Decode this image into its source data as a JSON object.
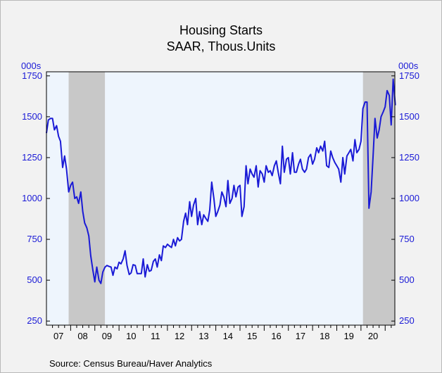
{
  "chart_data": {
    "type": "line",
    "title": "Housing Starts",
    "subtitle": "SAAR, Thous.Units",
    "unit_label_left": "000s",
    "unit_label_right": "000s",
    "source": "Source:  Census Bureau/Haver Analytics",
    "ylim": [
      225,
      1775
    ],
    "yticks": [
      250,
      500,
      750,
      1000,
      1250,
      1500,
      1750
    ],
    "xlim": [
      2007.0,
      2021.4
    ],
    "xtick_labels": [
      "07",
      "08",
      "09",
      "10",
      "11",
      "12",
      "13",
      "14",
      "15",
      "16",
      "17",
      "18",
      "19",
      "20"
    ],
    "recessions": [
      [
        2007.917,
        2009.417
      ],
      [
        2020.083,
        2021.4
      ]
    ],
    "grid": false,
    "colors": {
      "line": "#1a1ad6",
      "plot_bg": "#eef5fd",
      "recession": "#c8c8c8",
      "axis_text": "#1a1ad6"
    },
    "series": [
      {
        "values": [
          [
            2007.0,
            1400
          ],
          [
            2007.08,
            1480
          ],
          [
            2007.17,
            1490
          ],
          [
            2007.25,
            1490
          ],
          [
            2007.33,
            1420
          ],
          [
            2007.42,
            1445
          ],
          [
            2007.5,
            1380
          ],
          [
            2007.58,
            1350
          ],
          [
            2007.67,
            1190
          ],
          [
            2007.75,
            1260
          ],
          [
            2007.83,
            1180
          ],
          [
            2007.92,
            1040
          ],
          [
            2008.0,
            1080
          ],
          [
            2008.08,
            1100
          ],
          [
            2008.17,
            1000
          ],
          [
            2008.25,
            1010
          ],
          [
            2008.33,
            970
          ],
          [
            2008.42,
            1040
          ],
          [
            2008.5,
            920
          ],
          [
            2008.58,
            850
          ],
          [
            2008.67,
            820
          ],
          [
            2008.75,
            770
          ],
          [
            2008.83,
            650
          ],
          [
            2008.92,
            560
          ],
          [
            2009.0,
            490
          ],
          [
            2009.08,
            580
          ],
          [
            2009.17,
            500
          ],
          [
            2009.25,
            480
          ],
          [
            2009.33,
            550
          ],
          [
            2009.42,
            580
          ],
          [
            2009.5,
            590
          ],
          [
            2009.58,
            585
          ],
          [
            2009.67,
            580
          ],
          [
            2009.75,
            530
          ],
          [
            2009.83,
            580
          ],
          [
            2009.92,
            570
          ],
          [
            2010.0,
            610
          ],
          [
            2010.08,
            600
          ],
          [
            2010.17,
            630
          ],
          [
            2010.25,
            680
          ],
          [
            2010.33,
            590
          ],
          [
            2010.42,
            535
          ],
          [
            2010.5,
            545
          ],
          [
            2010.58,
            595
          ],
          [
            2010.67,
            590
          ],
          [
            2010.75,
            540
          ],
          [
            2010.83,
            540
          ],
          [
            2010.92,
            540
          ],
          [
            2011.0,
            630
          ],
          [
            2011.08,
            520
          ],
          [
            2011.17,
            595
          ],
          [
            2011.25,
            555
          ],
          [
            2011.33,
            560
          ],
          [
            2011.42,
            615
          ],
          [
            2011.5,
            630
          ],
          [
            2011.58,
            580
          ],
          [
            2011.67,
            655
          ],
          [
            2011.75,
            620
          ],
          [
            2011.83,
            710
          ],
          [
            2011.92,
            700
          ],
          [
            2012.0,
            720
          ],
          [
            2012.08,
            710
          ],
          [
            2012.17,
            700
          ],
          [
            2012.25,
            750
          ],
          [
            2012.33,
            710
          ],
          [
            2012.42,
            760
          ],
          [
            2012.5,
            740
          ],
          [
            2012.58,
            750
          ],
          [
            2012.67,
            860
          ],
          [
            2012.75,
            910
          ],
          [
            2012.83,
            840
          ],
          [
            2012.92,
            980
          ],
          [
            2013.0,
            890
          ],
          [
            2013.08,
            960
          ],
          [
            2013.17,
            1000
          ],
          [
            2013.25,
            840
          ],
          [
            2013.33,
            920
          ],
          [
            2013.42,
            840
          ],
          [
            2013.5,
            900
          ],
          [
            2013.58,
            880
          ],
          [
            2013.67,
            860
          ],
          [
            2013.75,
            930
          ],
          [
            2013.83,
            1100
          ],
          [
            2013.92,
            1000
          ],
          [
            2014.0,
            890
          ],
          [
            2014.08,
            920
          ],
          [
            2014.17,
            960
          ],
          [
            2014.25,
            1040
          ],
          [
            2014.33,
            1010
          ],
          [
            2014.42,
            950
          ],
          [
            2014.5,
            1110
          ],
          [
            2014.58,
            970
          ],
          [
            2014.67,
            1000
          ],
          [
            2014.75,
            1080
          ],
          [
            2014.83,
            1010
          ],
          [
            2014.92,
            1070
          ],
          [
            2015.0,
            1080
          ],
          [
            2015.08,
            890
          ],
          [
            2015.17,
            950
          ],
          [
            2015.25,
            1200
          ],
          [
            2015.33,
            1090
          ],
          [
            2015.42,
            1180
          ],
          [
            2015.5,
            1150
          ],
          [
            2015.58,
            1130
          ],
          [
            2015.67,
            1200
          ],
          [
            2015.75,
            1070
          ],
          [
            2015.83,
            1170
          ],
          [
            2015.92,
            1150
          ],
          [
            2016.0,
            1100
          ],
          [
            2016.08,
            1200
          ],
          [
            2016.17,
            1160
          ],
          [
            2016.25,
            1170
          ],
          [
            2016.33,
            1140
          ],
          [
            2016.42,
            1200
          ],
          [
            2016.5,
            1230
          ],
          [
            2016.58,
            1160
          ],
          [
            2016.67,
            1090
          ],
          [
            2016.75,
            1320
          ],
          [
            2016.83,
            1160
          ],
          [
            2016.92,
            1240
          ],
          [
            2017.0,
            1250
          ],
          [
            2017.08,
            1150
          ],
          [
            2017.17,
            1280
          ],
          [
            2017.25,
            1160
          ],
          [
            2017.33,
            1160
          ],
          [
            2017.42,
            1210
          ],
          [
            2017.5,
            1240
          ],
          [
            2017.58,
            1180
          ],
          [
            2017.67,
            1160
          ],
          [
            2017.75,
            1180
          ],
          [
            2017.83,
            1250
          ],
          [
            2017.92,
            1270
          ],
          [
            2018.0,
            1210
          ],
          [
            2018.08,
            1240
          ],
          [
            2018.17,
            1310
          ],
          [
            2018.25,
            1280
          ],
          [
            2018.33,
            1320
          ],
          [
            2018.42,
            1290
          ],
          [
            2018.5,
            1350
          ],
          [
            2018.58,
            1200
          ],
          [
            2018.67,
            1190
          ],
          [
            2018.75,
            1290
          ],
          [
            2018.83,
            1250
          ],
          [
            2018.92,
            1220
          ],
          [
            2019.0,
            1200
          ],
          [
            2019.08,
            1180
          ],
          [
            2019.17,
            1100
          ],
          [
            2019.25,
            1250
          ],
          [
            2019.33,
            1150
          ],
          [
            2019.42,
            1260
          ],
          [
            2019.5,
            1280
          ],
          [
            2019.58,
            1300
          ],
          [
            2019.67,
            1230
          ],
          [
            2019.75,
            1360
          ],
          [
            2019.83,
            1280
          ],
          [
            2019.92,
            1300
          ],
          [
            2020.0,
            1350
          ],
          [
            2020.08,
            1550
          ],
          [
            2020.17,
            1590
          ],
          [
            2020.25,
            1590
          ],
          [
            2020.33,
            940
          ],
          [
            2020.42,
            1040
          ],
          [
            2020.5,
            1260
          ],
          [
            2020.58,
            1490
          ],
          [
            2020.67,
            1370
          ],
          [
            2020.75,
            1420
          ],
          [
            2020.83,
            1500
          ],
          [
            2020.92,
            1530
          ],
          [
            2021.0,
            1560
          ],
          [
            2021.08,
            1660
          ],
          [
            2021.17,
            1630
          ],
          [
            2021.25,
            1450
          ],
          [
            2021.33,
            1730
          ],
          [
            2021.42,
            1570
          ]
        ]
      }
    ]
  }
}
